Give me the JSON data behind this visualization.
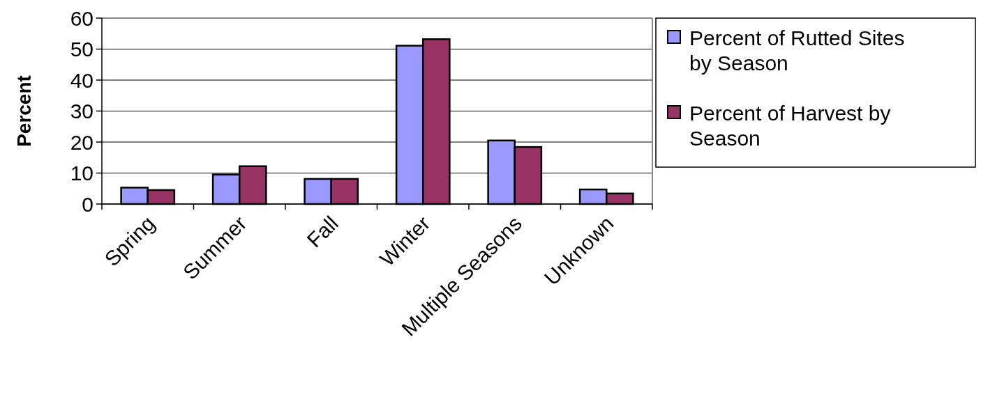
{
  "chart_data": {
    "type": "bar",
    "ylabel": "Percent",
    "categories": [
      "Spring",
      "Summer",
      "Fall",
      "Winter",
      "Multiple Seasons",
      "Unknown"
    ],
    "series": [
      {
        "name": "Percent of Rutted Sites by Season",
        "color": "#9999ff",
        "values": [
          5.3,
          9.5,
          8.1,
          51.1,
          20.5,
          4.7
        ]
      },
      {
        "name": "Percent of Harvest by Season",
        "color": "#993366",
        "values": [
          4.5,
          12.2,
          8.1,
          53.2,
          18.4,
          3.4
        ]
      }
    ],
    "ylim": [
      0,
      60
    ],
    "yticks": [
      0,
      10,
      20,
      30,
      40,
      50,
      60
    ],
    "grid": "y",
    "legend": "right"
  }
}
